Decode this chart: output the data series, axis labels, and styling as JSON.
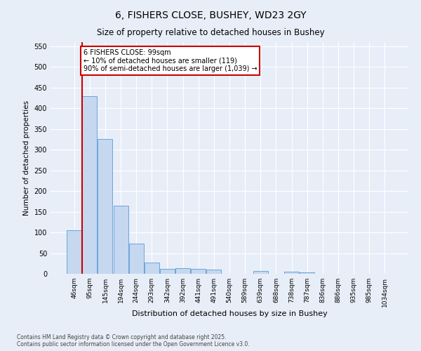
{
  "title": "6, FISHERS CLOSE, BUSHEY, WD23 2GY",
  "subtitle": "Size of property relative to detached houses in Bushey",
  "xlabel": "Distribution of detached houses by size in Bushey",
  "ylabel": "Number of detached properties",
  "bar_color": "#c5d8ef",
  "bar_edge_color": "#5b9bd5",
  "background_color": "#e8eef8",
  "plot_bg_color": "#e8eef8",
  "grid_color": "#ffffff",
  "categories": [
    "46sqm",
    "95sqm",
    "145sqm",
    "194sqm",
    "244sqm",
    "293sqm",
    "342sqm",
    "392sqm",
    "441sqm",
    "491sqm",
    "540sqm",
    "589sqm",
    "639sqm",
    "688sqm",
    "738sqm",
    "787sqm",
    "836sqm",
    "886sqm",
    "935sqm",
    "985sqm",
    "1034sqm"
  ],
  "values": [
    105,
    430,
    325,
    165,
    73,
    27,
    12,
    13,
    12,
    10,
    0,
    0,
    6,
    0,
    5,
    3,
    0,
    0,
    0,
    0,
    0
  ],
  "vline_x": 1,
  "vline_color": "#cc0000",
  "annotation_text": "6 FISHERS CLOSE: 99sqm\n← 10% of detached houses are smaller (119)\n90% of semi-detached houses are larger (1,039) →",
  "annotation_box_color": "#ffffff",
  "annotation_box_edge": "#cc0000",
  "ylim": [
    0,
    560
  ],
  "yticks": [
    0,
    50,
    100,
    150,
    200,
    250,
    300,
    350,
    400,
    450,
    500,
    550
  ],
  "footnote": "Contains HM Land Registry data © Crown copyright and database right 2025.\nContains public sector information licensed under the Open Government Licence v3.0.",
  "figsize": [
    6.0,
    5.0
  ],
  "dpi": 100
}
